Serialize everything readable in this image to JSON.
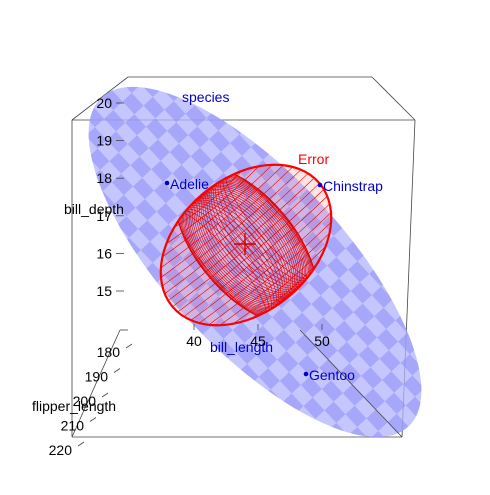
{
  "chart_data": {
    "type": "3d-hypothesis-ellipsoid",
    "axes": {
      "x": {
        "label": "bill_length",
        "ticks": [
          "40",
          "45",
          "50"
        ]
      },
      "y": {
        "label": "bill_depth",
        "ticks": [
          "15",
          "16",
          "17",
          "18",
          "19",
          "20"
        ]
      },
      "z": {
        "label": "flipper_length",
        "ticks": [
          "180",
          "190",
          "200",
          "210",
          "220"
        ]
      }
    },
    "hypothesis": {
      "name": "species",
      "color": "#8080ff",
      "points": [
        {
          "label": "Adelie",
          "bill_length": 38.8,
          "bill_depth": 18.3,
          "flipper_length": 190.0
        },
        {
          "label": "Chinstrap",
          "bill_length": 48.8,
          "bill_depth": 18.4,
          "flipper_length": 196.0
        },
        {
          "label": "Gentoo",
          "bill_length": 47.5,
          "bill_depth": 15.0,
          "flipper_length": 217.0
        }
      ]
    },
    "error": {
      "name": "Error",
      "color": "#ff0000",
      "center": {
        "bill_length": 43.9,
        "bill_depth": 17.2,
        "flipper_length": 201.0
      }
    }
  }
}
